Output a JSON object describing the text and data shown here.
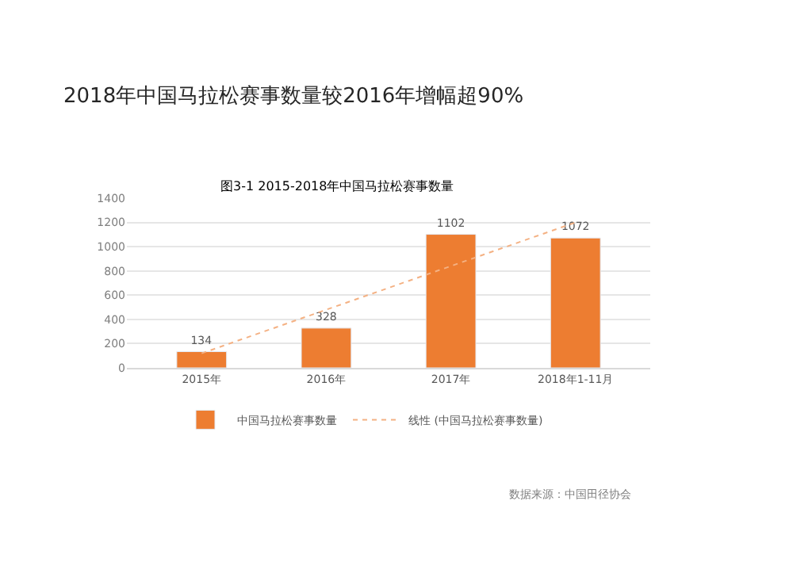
{
  "chart_data": {
    "type": "bar",
    "title": "2018年中国马拉松赛事数量较2016年增幅超90%",
    "subtitle": "图3-1 2015-2018年中国马拉松赛事数量",
    "categories": [
      "2015年",
      "2016年",
      "2017年",
      "2018年1-11月"
    ],
    "series": [
      {
        "name": "中国马拉松赛事数量",
        "color": "#ed7d31",
        "values": [
          134,
          328,
          1102,
          1072
        ],
        "value_labels": [
          "134",
          "328",
          "1102",
          "1072"
        ]
      },
      {
        "name": "线性 (中国马拉松赛事数量)",
        "type": "line",
        "color": "#f4b183",
        "line_style": "dotted",
        "marker": "none",
        "x": [
          "2015年",
          "2018年1-11月"
        ],
        "values": [
          120,
          1200
        ]
      }
    ],
    "ylim": [
      0,
      1400
    ],
    "yticks": [
      0,
      200,
      400,
      600,
      800,
      1000,
      1200,
      1400
    ],
    "grid": "y",
    "legend": "bottom",
    "annotations": [
      "数据来源：中国田径协会"
    ]
  }
}
